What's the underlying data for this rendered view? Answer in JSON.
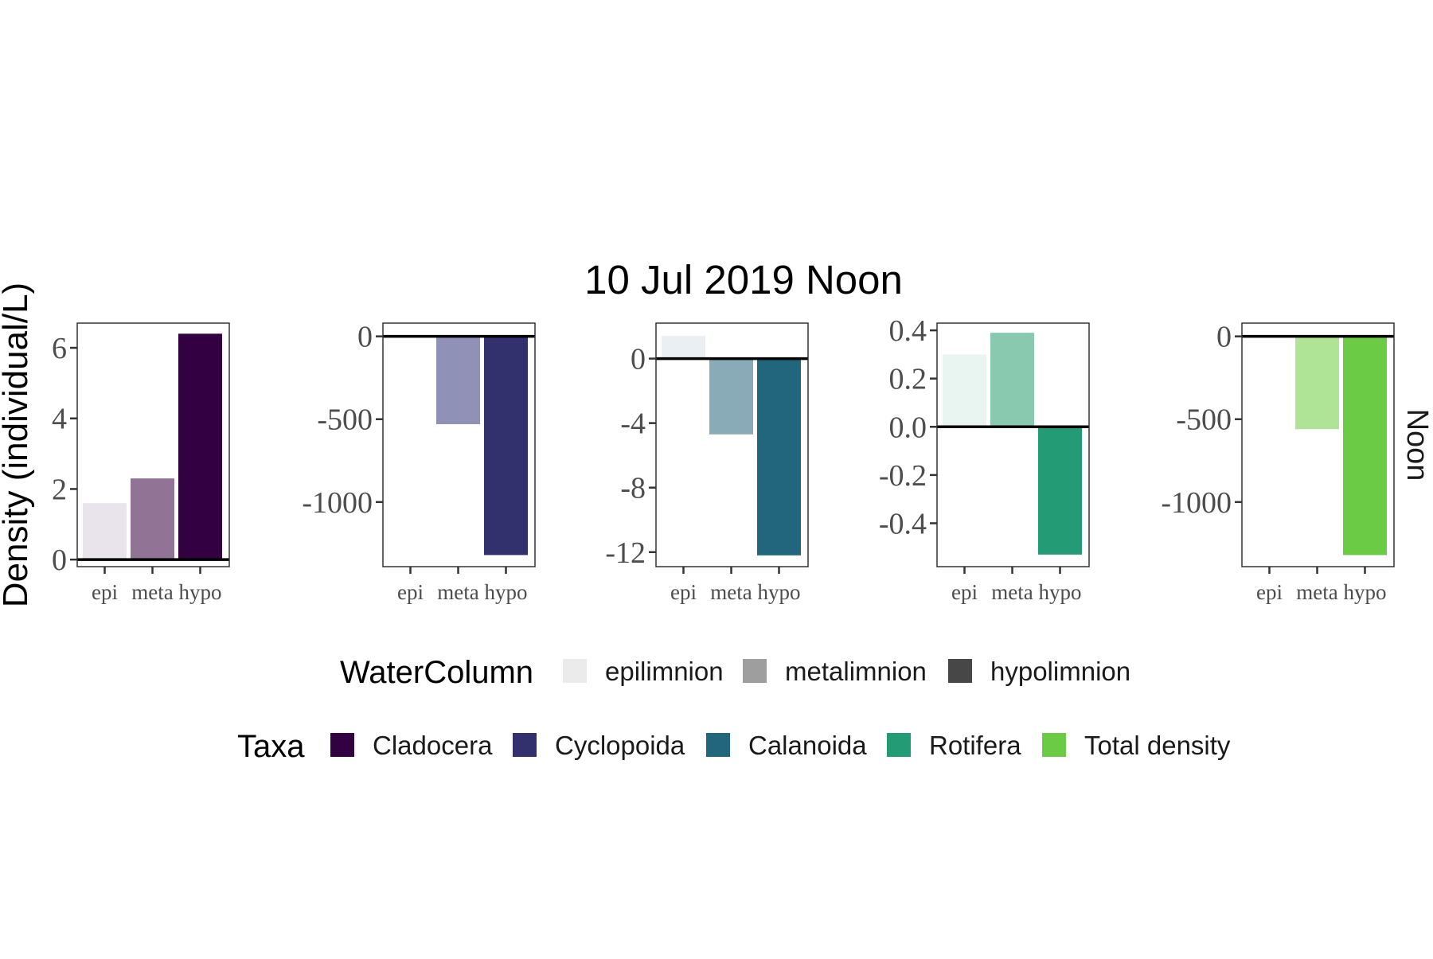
{
  "title": "10 Jul 2019 Noon",
  "ylabel": "Density (individual/L)",
  "strip_label": "Noon",
  "legends": {
    "watercolumn": {
      "title": "WaterColumn",
      "items": [
        {
          "label": "epilimnion",
          "color": "#ebebeb"
        },
        {
          "label": "metalimnion",
          "color": "#9e9e9e"
        },
        {
          "label": "hypolimnion",
          "color": "#474747"
        }
      ]
    },
    "taxa": {
      "title": "Taxa",
      "items": [
        {
          "label": "Cladocera",
          "color": "#330042"
        },
        {
          "label": "Cyclopoida",
          "color": "#33306e"
        },
        {
          "label": "Calanoida",
          "color": "#21667d"
        },
        {
          "label": "Rotifera",
          "color": "#239b75"
        },
        {
          "label": "Total density",
          "color": "#6bcb45"
        }
      ]
    }
  },
  "chart_data": [
    {
      "type": "bar",
      "panel": "Cladocera",
      "categories": [
        "epi",
        "meta",
        "hypo"
      ],
      "values": [
        1.6,
        2.3,
        6.4
      ],
      "colors": [
        "#e9e4ec",
        "#917495",
        "#330042"
      ],
      "ylim": [
        -0.2,
        6.7
      ],
      "yticks": [
        0,
        2,
        4,
        6
      ],
      "ytick_labels": [
        "0",
        "2",
        "4",
        "6"
      ]
    },
    {
      "type": "bar",
      "panel": "Cyclopoida",
      "categories": [
        "epi",
        "meta",
        "hypo"
      ],
      "values": [
        0,
        -530,
        -1320
      ],
      "colors": [
        "#e8e8f0",
        "#9091b6",
        "#33306e"
      ],
      "ylim": [
        -1390,
        80
      ],
      "yticks": [
        0,
        -500,
        -1000
      ],
      "ytick_labels": [
        "0",
        "-500",
        "-1000"
      ]
    },
    {
      "type": "bar",
      "panel": "Calanoida",
      "categories": [
        "epi",
        "meta",
        "hypo"
      ],
      "values": [
        1.4,
        -4.7,
        -12.2
      ],
      "colors": [
        "#e9eff2",
        "#89abb8",
        "#21667d"
      ],
      "ylim": [
        -12.9,
        2.2
      ],
      "yticks": [
        0,
        -4,
        -8,
        -12
      ],
      "ytick_labels": [
        "0",
        "-4",
        "-8",
        "-12"
      ]
    },
    {
      "type": "bar",
      "panel": "Rotifera",
      "categories": [
        "epi",
        "meta",
        "hypo"
      ],
      "values": [
        0.3,
        0.39,
        -0.53
      ],
      "colors": [
        "#e9f5f0",
        "#88c9b0",
        "#239b75"
      ],
      "ylim": [
        -0.58,
        0.43
      ],
      "yticks": [
        0.4,
        0.2,
        0.0,
        -0.2,
        -0.4
      ],
      "ytick_labels": [
        "0.4",
        "0.2",
        "0.0",
        "-0.2",
        "-0.4"
      ]
    },
    {
      "type": "bar",
      "panel": "Total density",
      "categories": [
        "epi",
        "meta",
        "hypo"
      ],
      "values": [
        0,
        -560,
        -1320
      ],
      "colors": [
        "#eff8ea",
        "#afe396",
        "#6bcb45"
      ],
      "ylim": [
        -1390,
        80
      ],
      "yticks": [
        0,
        -500,
        -1000
      ],
      "ytick_labels": [
        "0",
        "-500",
        "-1000"
      ]
    }
  ]
}
